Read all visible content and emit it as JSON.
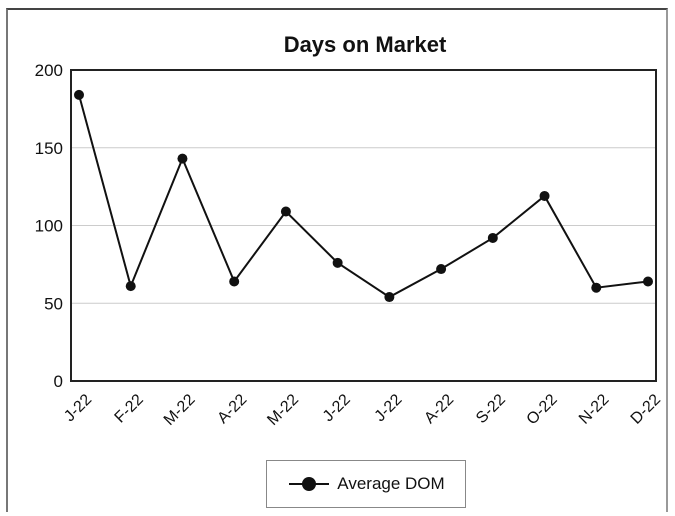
{
  "chart_data": {
    "type": "line",
    "title": "Days on Market",
    "categories": [
      "J-22",
      "F-22",
      "M-22",
      "A-22",
      "M-22",
      "J-22",
      "J-22",
      "A-22",
      "S-22",
      "O-22",
      "N-22",
      "D-22"
    ],
    "series": [
      {
        "name": "Average DOM",
        "values": [
          184,
          61,
          143,
          64,
          109,
          76,
          54,
          72,
          92,
          119,
          60,
          64
        ]
      }
    ],
    "xlabel": "",
    "ylabel": "",
    "ylim": [
      0,
      200
    ],
    "yticks": [
      0,
      50,
      100,
      150,
      200
    ],
    "grid": true,
    "legend_placement": "bottom",
    "colors": {
      "line": "#111111",
      "grid": "#cccccc",
      "axis": "#222222"
    }
  }
}
